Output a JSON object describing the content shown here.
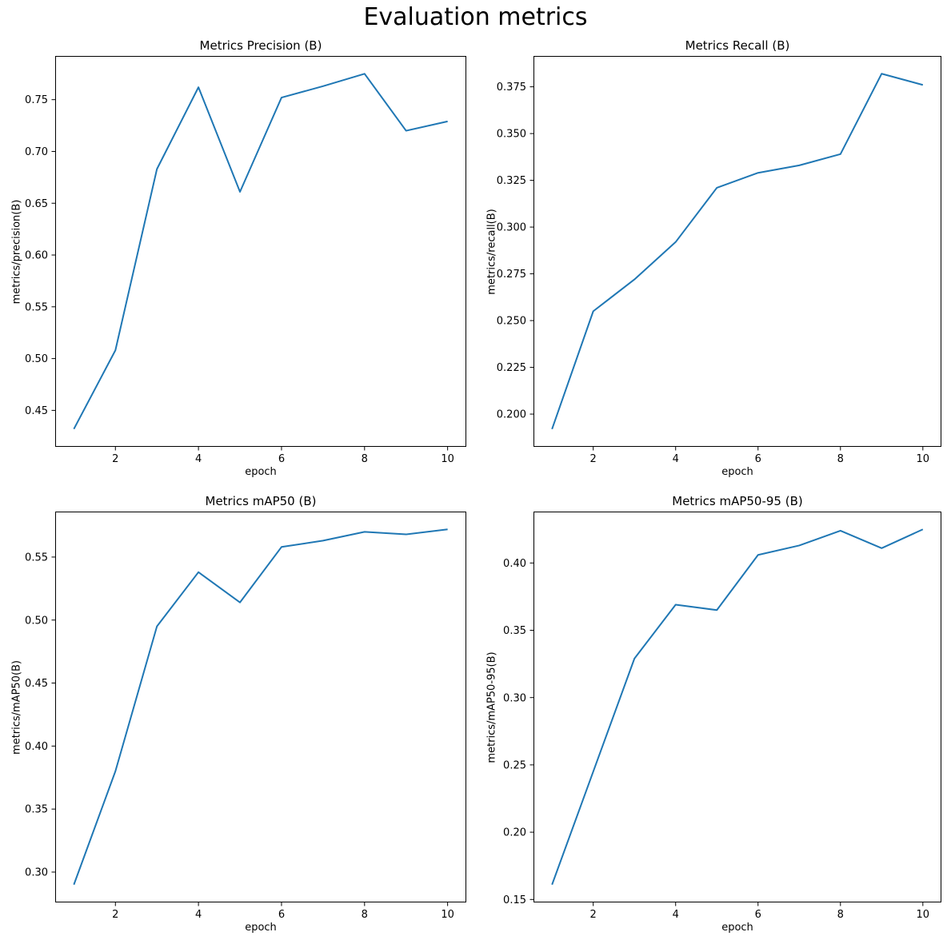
{
  "figure": {
    "suptitle": "Evaluation metrics",
    "background": "#ffffff",
    "text_color": "#000000",
    "accent_line_color": "#1f77b4"
  },
  "chart_data": [
    {
      "type": "line",
      "title": "Metrics Precision (B)",
      "xlabel": "epoch",
      "ylabel": "metrics/precision(B)",
      "x": [
        1,
        2,
        3,
        4,
        5,
        6,
        7,
        8,
        9,
        10
      ],
      "y": [
        0.432,
        0.508,
        0.683,
        0.762,
        0.661,
        0.752,
        0.763,
        0.775,
        0.72,
        0.729
      ],
      "xlim": [
        0.55,
        10.45
      ],
      "ylim": [
        0.4148,
        0.7922
      ],
      "xticks": [
        2,
        4,
        6,
        8,
        10
      ],
      "xtick_labels": [
        "2",
        "4",
        "6",
        "8",
        "10"
      ],
      "yticks": [
        0.45,
        0.5,
        0.55,
        0.6,
        0.65,
        0.7,
        0.75
      ],
      "ytick_labels": [
        "0.45",
        "0.50",
        "0.55",
        "0.60",
        "0.65",
        "0.70",
        "0.75"
      ],
      "grid": false,
      "legend": null,
      "line_color": "#1f77b4"
    },
    {
      "type": "line",
      "title": "Metrics Recall (B)",
      "xlabel": "epoch",
      "ylabel": "metrics/recall(B)",
      "x": [
        1,
        2,
        3,
        4,
        5,
        6,
        7,
        8,
        9,
        10
      ],
      "y": [
        0.192,
        0.255,
        0.272,
        0.292,
        0.321,
        0.329,
        0.333,
        0.339,
        0.382,
        0.376
      ],
      "xlim": [
        0.55,
        10.45
      ],
      "ylim": [
        0.1825,
        0.3915
      ],
      "xticks": [
        2,
        4,
        6,
        8,
        10
      ],
      "xtick_labels": [
        "2",
        "4",
        "6",
        "8",
        "10"
      ],
      "yticks": [
        0.2,
        0.225,
        0.25,
        0.275,
        0.3,
        0.325,
        0.35,
        0.375
      ],
      "ytick_labels": [
        "0.200",
        "0.225",
        "0.250",
        "0.275",
        "0.300",
        "0.325",
        "0.350",
        "0.375"
      ],
      "grid": false,
      "legend": null,
      "line_color": "#1f77b4"
    },
    {
      "type": "line",
      "title": "Metrics mAP50 (B)",
      "xlabel": "epoch",
      "ylabel": "metrics/mAP50(B)",
      "x": [
        1,
        2,
        3,
        4,
        5,
        6,
        7,
        8,
        9,
        10
      ],
      "y": [
        0.29,
        0.38,
        0.495,
        0.538,
        0.514,
        0.558,
        0.563,
        0.57,
        0.568,
        0.572
      ],
      "xlim": [
        0.55,
        10.45
      ],
      "ylim": [
        0.2759,
        0.5861
      ],
      "xticks": [
        2,
        4,
        6,
        8,
        10
      ],
      "xtick_labels": [
        "2",
        "4",
        "6",
        "8",
        "10"
      ],
      "yticks": [
        0.3,
        0.35,
        0.4,
        0.45,
        0.5,
        0.55
      ],
      "ytick_labels": [
        "0.30",
        "0.35",
        "0.40",
        "0.45",
        "0.50",
        "0.55"
      ],
      "grid": false,
      "legend": null,
      "line_color": "#1f77b4"
    },
    {
      "type": "line",
      "title": "Metrics mAP50-95 (B)",
      "xlabel": "epoch",
      "ylabel": "metrics/mAP50-95(B)",
      "x": [
        1,
        2,
        3,
        4,
        5,
        6,
        7,
        8,
        9,
        10
      ],
      "y": [
        0.161,
        0.245,
        0.329,
        0.369,
        0.365,
        0.406,
        0.413,
        0.424,
        0.411,
        0.425
      ],
      "xlim": [
        0.55,
        10.45
      ],
      "ylim": [
        0.1478,
        0.4382
      ],
      "xticks": [
        2,
        4,
        6,
        8,
        10
      ],
      "xtick_labels": [
        "2",
        "4",
        "6",
        "8",
        "10"
      ],
      "yticks": [
        0.15,
        0.2,
        0.25,
        0.3,
        0.35,
        0.4
      ],
      "ytick_labels": [
        "0.15",
        "0.20",
        "0.25",
        "0.30",
        "0.35",
        "0.40"
      ],
      "grid": false,
      "legend": null,
      "line_color": "#1f77b4"
    }
  ]
}
